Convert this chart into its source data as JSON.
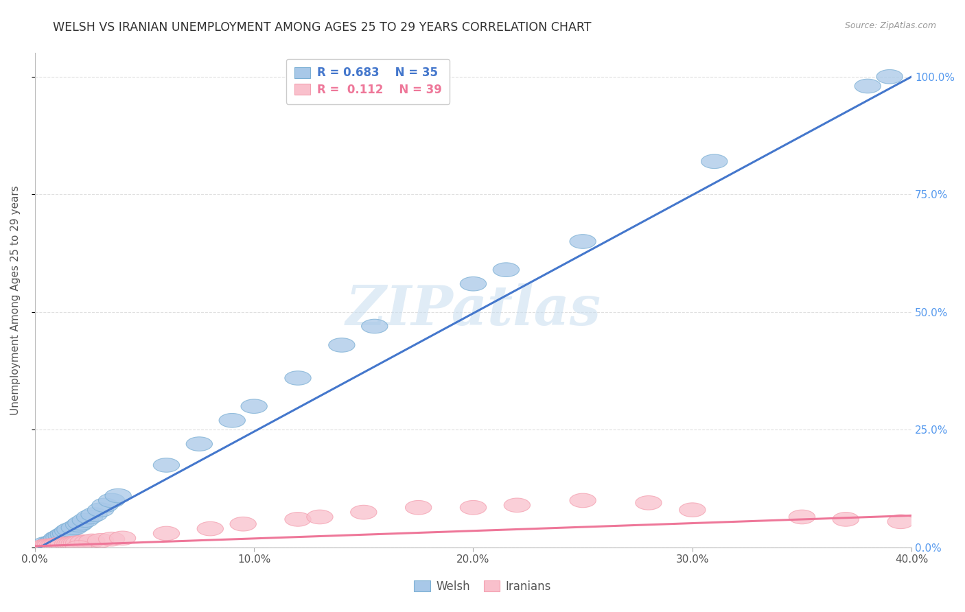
{
  "title": "WELSH VS IRANIAN UNEMPLOYMENT AMONG AGES 25 TO 29 YEARS CORRELATION CHART",
  "source": "Source: ZipAtlas.com",
  "ylabel": "Unemployment Among Ages 25 to 29 years",
  "watermark": "ZIPatlas",
  "welsh_color": "#7BAFD4",
  "welsh_face_color": "#A8C8E8",
  "iranian_color": "#F4A0B0",
  "iranian_face_color": "#F9C0CC",
  "welsh_line_color": "#4477CC",
  "iranian_line_color": "#EE7799",
  "welsh_R": 0.683,
  "welsh_N": 35,
  "iranian_R": 0.112,
  "iranian_N": 39,
  "background_color": "#FFFFFF",
  "grid_color": "#DDDDDD",
  "legend_text_color_welsh": "#4477CC",
  "legend_text_color_iranian": "#EE7799",
  "right_axis_color": "#5599EE",
  "ytick_values": [
    0.0,
    0.25,
    0.5,
    0.75,
    1.0
  ],
  "ytick_labels": [
    "0.0%",
    "25.0%",
    "50.0%",
    "75.0%",
    "100.0%"
  ],
  "xtick_values": [
    0.0,
    0.1,
    0.2,
    0.3,
    0.4
  ],
  "xtick_labels": [
    "0.0%",
    "10.0%",
    "20.0%",
    "30.0%",
    "40.0%"
  ],
  "welsh_x": [
    0.005,
    0.007,
    0.008,
    0.009,
    0.01,
    0.01,
    0.011,
    0.012,
    0.013,
    0.014,
    0.015,
    0.016,
    0.018,
    0.02,
    0.021,
    0.023,
    0.025,
    0.027,
    0.03,
    0.032,
    0.035,
    0.038,
    0.06,
    0.075,
    0.09,
    0.1,
    0.12,
    0.14,
    0.155,
    0.2,
    0.215,
    0.25,
    0.31,
    0.38,
    0.39
  ],
  "welsh_y": [
    0.008,
    0.01,
    0.012,
    0.015,
    0.018,
    0.02,
    0.022,
    0.025,
    0.028,
    0.03,
    0.035,
    0.038,
    0.042,
    0.048,
    0.052,
    0.058,
    0.065,
    0.07,
    0.08,
    0.09,
    0.1,
    0.11,
    0.175,
    0.22,
    0.27,
    0.3,
    0.36,
    0.43,
    0.47,
    0.56,
    0.59,
    0.65,
    0.82,
    0.98,
    1.0
  ],
  "iranian_x": [
    0.004,
    0.005,
    0.006,
    0.007,
    0.008,
    0.009,
    0.01,
    0.01,
    0.011,
    0.012,
    0.013,
    0.015,
    0.016,
    0.017,
    0.018,
    0.019,
    0.02,
    0.022,
    0.024,
    0.026,
    0.03,
    0.035,
    0.04,
    0.06,
    0.08,
    0.095,
    0.12,
    0.13,
    0.15,
    0.175,
    0.2,
    0.22,
    0.25,
    0.28,
    0.3,
    0.35,
    0.37,
    0.395,
    0.02
  ],
  "iranian_y": [
    0.002,
    0.003,
    0.003,
    0.004,
    0.004,
    0.005,
    0.005,
    0.006,
    0.006,
    0.007,
    0.007,
    0.008,
    0.008,
    0.009,
    0.009,
    0.01,
    0.01,
    0.012,
    0.012,
    0.014,
    0.015,
    0.018,
    0.02,
    0.03,
    0.04,
    0.05,
    0.06,
    0.065,
    0.075,
    0.085,
    0.085,
    0.09,
    0.1,
    0.095,
    0.08,
    0.065,
    0.06,
    0.055,
    0.0
  ],
  "welsh_line_x0": 0.0,
  "welsh_line_y0": -0.005,
  "welsh_line_x1": 0.4,
  "welsh_line_y1": 1.0,
  "iranian_line_x0": 0.0,
  "iranian_line_y0": 0.003,
  "iranian_line_x1": 0.4,
  "iranian_line_y1": 0.068
}
